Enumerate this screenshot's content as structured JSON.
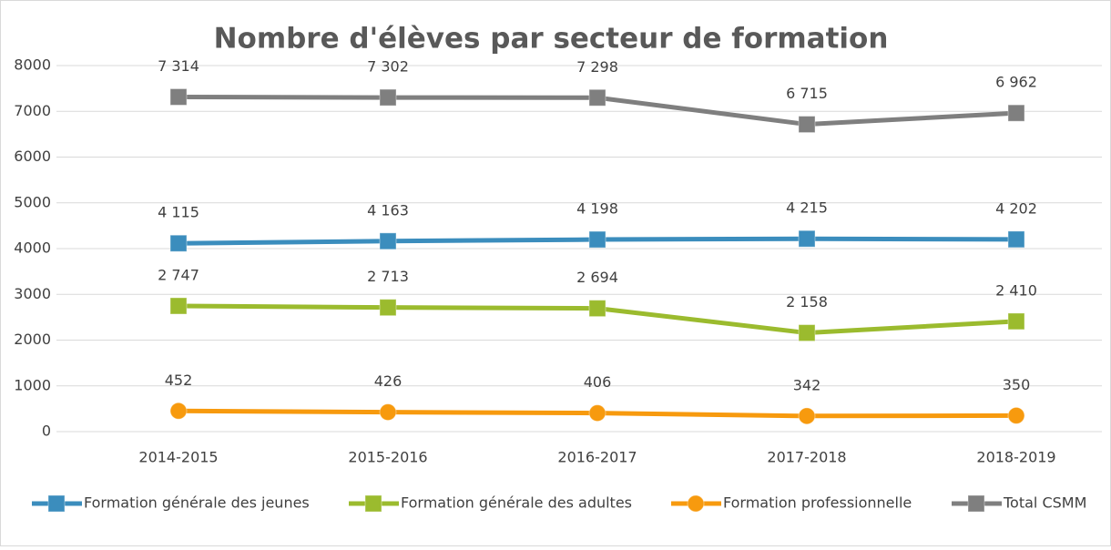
{
  "chart_data": {
    "type": "line",
    "title": "Nombre d'élèves par secteur de formation",
    "categories": [
      "2014-2015",
      "2015-2016",
      "2016-2017",
      "2017-2018",
      "2018-2019"
    ],
    "series": [
      {
        "name": "Formation générale des jeunes",
        "color": "#3b8dbd",
        "marker": "square",
        "values": [
          4115,
          4163,
          4198,
          4215,
          4202
        ],
        "value_labels": [
          "4 115",
          "4 163",
          "4 198",
          "4 215",
          "4 202"
        ]
      },
      {
        "name": "Formation générale des adultes",
        "color": "#9bbb2e",
        "marker": "square",
        "values": [
          2747,
          2713,
          2694,
          2158,
          2410
        ],
        "value_labels": [
          "2 747",
          "2 713",
          "2 694",
          "2 158",
          "2 410"
        ]
      },
      {
        "name": "Formation professionnelle",
        "color": "#f79a0e",
        "marker": "circle",
        "values": [
          452,
          426,
          406,
          342,
          350
        ]
      },
      {
        "name": "Total CSMM",
        "color": "#7f7f7f",
        "marker": "square",
        "values": [
          7314,
          7302,
          7298,
          6715,
          6962
        ],
        "value_labels": [
          "7 314",
          "7 302",
          "7 298",
          "6 715",
          "6 962"
        ]
      }
    ],
    "ylim": [
      0,
      8000
    ],
    "yticks": [
      0,
      1000,
      2000,
      3000,
      4000,
      5000,
      6000,
      7000,
      8000
    ],
    "grid": true,
    "legend": "bottom"
  }
}
